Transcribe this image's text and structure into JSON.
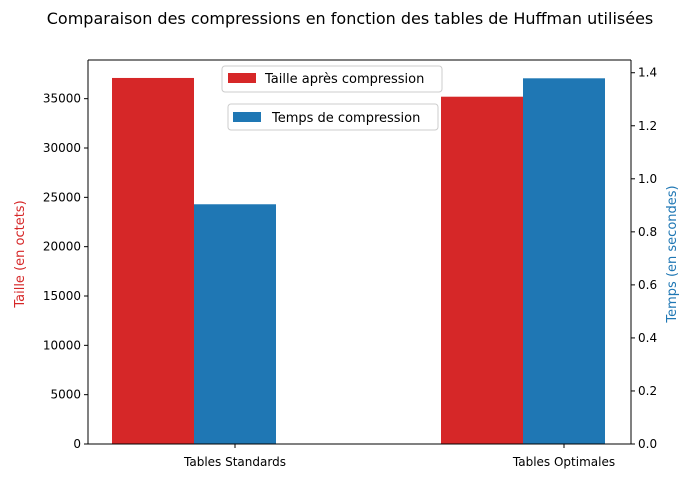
{
  "chart_data": {
    "type": "bar",
    "title": "Comparaison des compressions en fonction des tables de Huffman utilisées",
    "categories": [
      "Tables Standards",
      "Tables Optimales"
    ],
    "left_axis": {
      "label": "Taille (en octets)",
      "color": "#d62728",
      "ylim": [
        0,
        38920
      ],
      "ticks": [
        0,
        5000,
        10000,
        15000,
        20000,
        25000,
        30000,
        35000
      ]
    },
    "right_axis": {
      "label": "Temps (en secondes)",
      "color": "#1f77b4",
      "ylim": [
        0,
        1.448
      ],
      "ticks": [
        "0.0",
        "0.2",
        "0.4",
        "0.6",
        "0.8",
        "1.0",
        "1.2",
        "1.4"
      ]
    },
    "series": [
      {
        "name": "Taille après compression",
        "axis": "left",
        "color": "#d62728",
        "values": [
          37100,
          35200
        ]
      },
      {
        "name": "Temps de compression",
        "axis": "right",
        "color": "#1f77b4",
        "values": [
          0.904,
          1.379
        ]
      }
    ],
    "legend": "top-center",
    "grid": false
  }
}
